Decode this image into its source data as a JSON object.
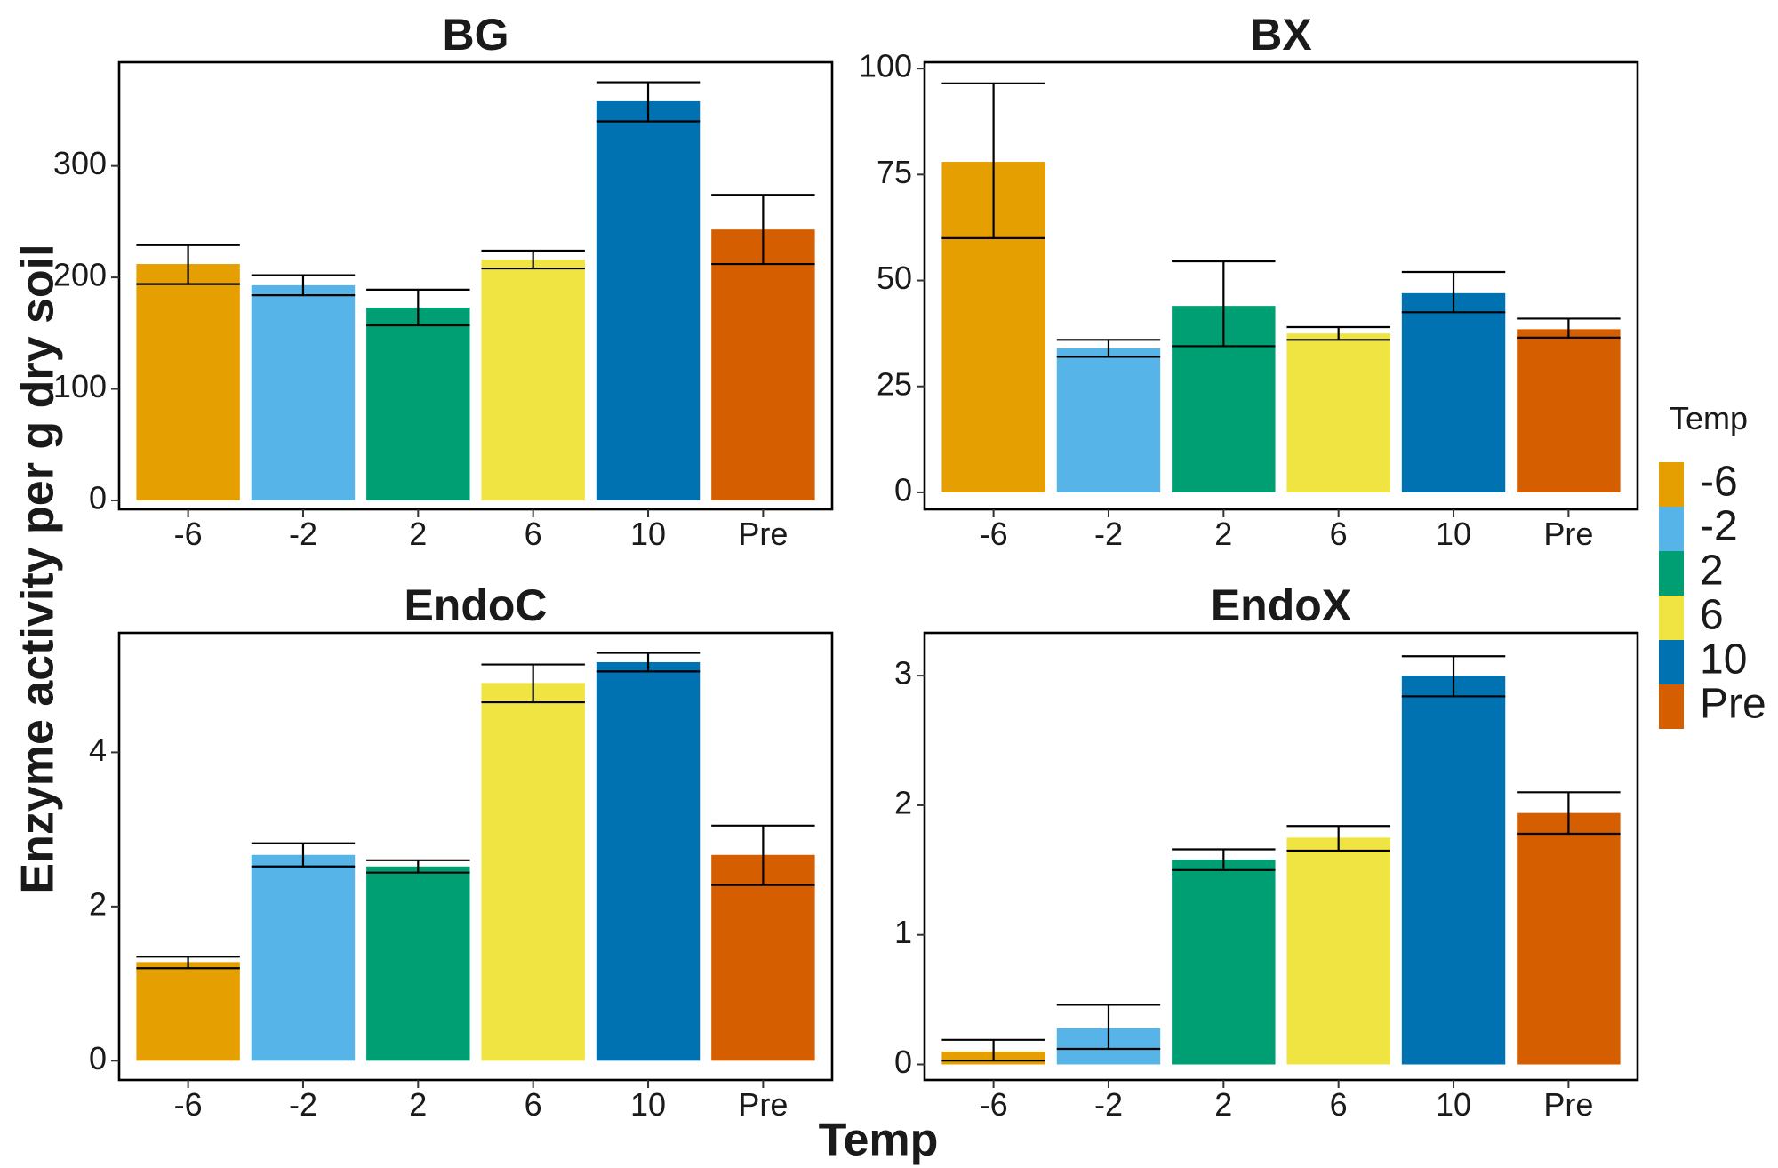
{
  "chart_data": {
    "type": "bar",
    "xlabel": "Temp",
    "ylabel": "Enzyme activity per g dry soil",
    "legend": {
      "title": "Temp",
      "position": "right",
      "items": [
        {
          "label": "-6",
          "color": "#E69F00"
        },
        {
          "label": "-2",
          "color": "#56B4E9"
        },
        {
          "label": "2",
          "color": "#009E73"
        },
        {
          "label": "6",
          "color": "#F0E442"
        },
        {
          "label": "10",
          "color": "#0072B2"
        },
        {
          "label": "Pre",
          "color": "#D55E00"
        }
      ]
    },
    "categories": [
      "-6",
      "-2",
      "2",
      "6",
      "10",
      "Pre"
    ],
    "panels": [
      {
        "title": "BG",
        "ylim": [
          -8,
          393
        ],
        "yticks": [
          0,
          100,
          200,
          300
        ],
        "ytick_labels": [
          "0",
          "100",
          "200",
          "300"
        ],
        "values": [
          212,
          193,
          173,
          216,
          358,
          243
        ],
        "err_low": [
          194,
          184,
          157,
          208,
          340,
          212
        ],
        "err_high": [
          229,
          202,
          189,
          224,
          375,
          274
        ]
      },
      {
        "title": "BX",
        "ylim": [
          -4,
          101.5
        ],
        "yticks": [
          0,
          25,
          50,
          75,
          100
        ],
        "ytick_labels": [
          "0",
          "25",
          "50",
          "75",
          "100"
        ],
        "values": [
          78,
          34,
          44,
          37.5,
          47,
          38.5
        ],
        "err_low": [
          60,
          32,
          34.5,
          36,
          42.5,
          36.5
        ],
        "err_high": [
          96.5,
          36,
          54.5,
          39,
          52,
          41
        ]
      },
      {
        "title": "EndoC",
        "ylim": [
          -0.25,
          5.55
        ],
        "yticks": [
          0,
          2,
          4
        ],
        "ytick_labels": [
          "0",
          "2",
          "4"
        ],
        "values": [
          1.28,
          2.67,
          2.52,
          4.9,
          5.17,
          2.67
        ],
        "err_low": [
          1.2,
          2.52,
          2.44,
          4.65,
          5.05,
          2.28
        ],
        "err_high": [
          1.35,
          2.82,
          2.6,
          5.14,
          5.29,
          3.05
        ]
      },
      {
        "title": "EndoX",
        "ylim": [
          -0.12,
          3.33
        ],
        "yticks": [
          0,
          1,
          2,
          3
        ],
        "ytick_labels": [
          "0",
          "1",
          "2",
          "3"
        ],
        "values": [
          0.1,
          0.28,
          1.58,
          1.75,
          3.0,
          1.94
        ],
        "err_low": [
          0.03,
          0.12,
          1.5,
          1.65,
          2.84,
          1.78
        ],
        "err_high": [
          0.19,
          0.46,
          1.66,
          1.84,
          3.15,
          2.1
        ]
      }
    ]
  }
}
